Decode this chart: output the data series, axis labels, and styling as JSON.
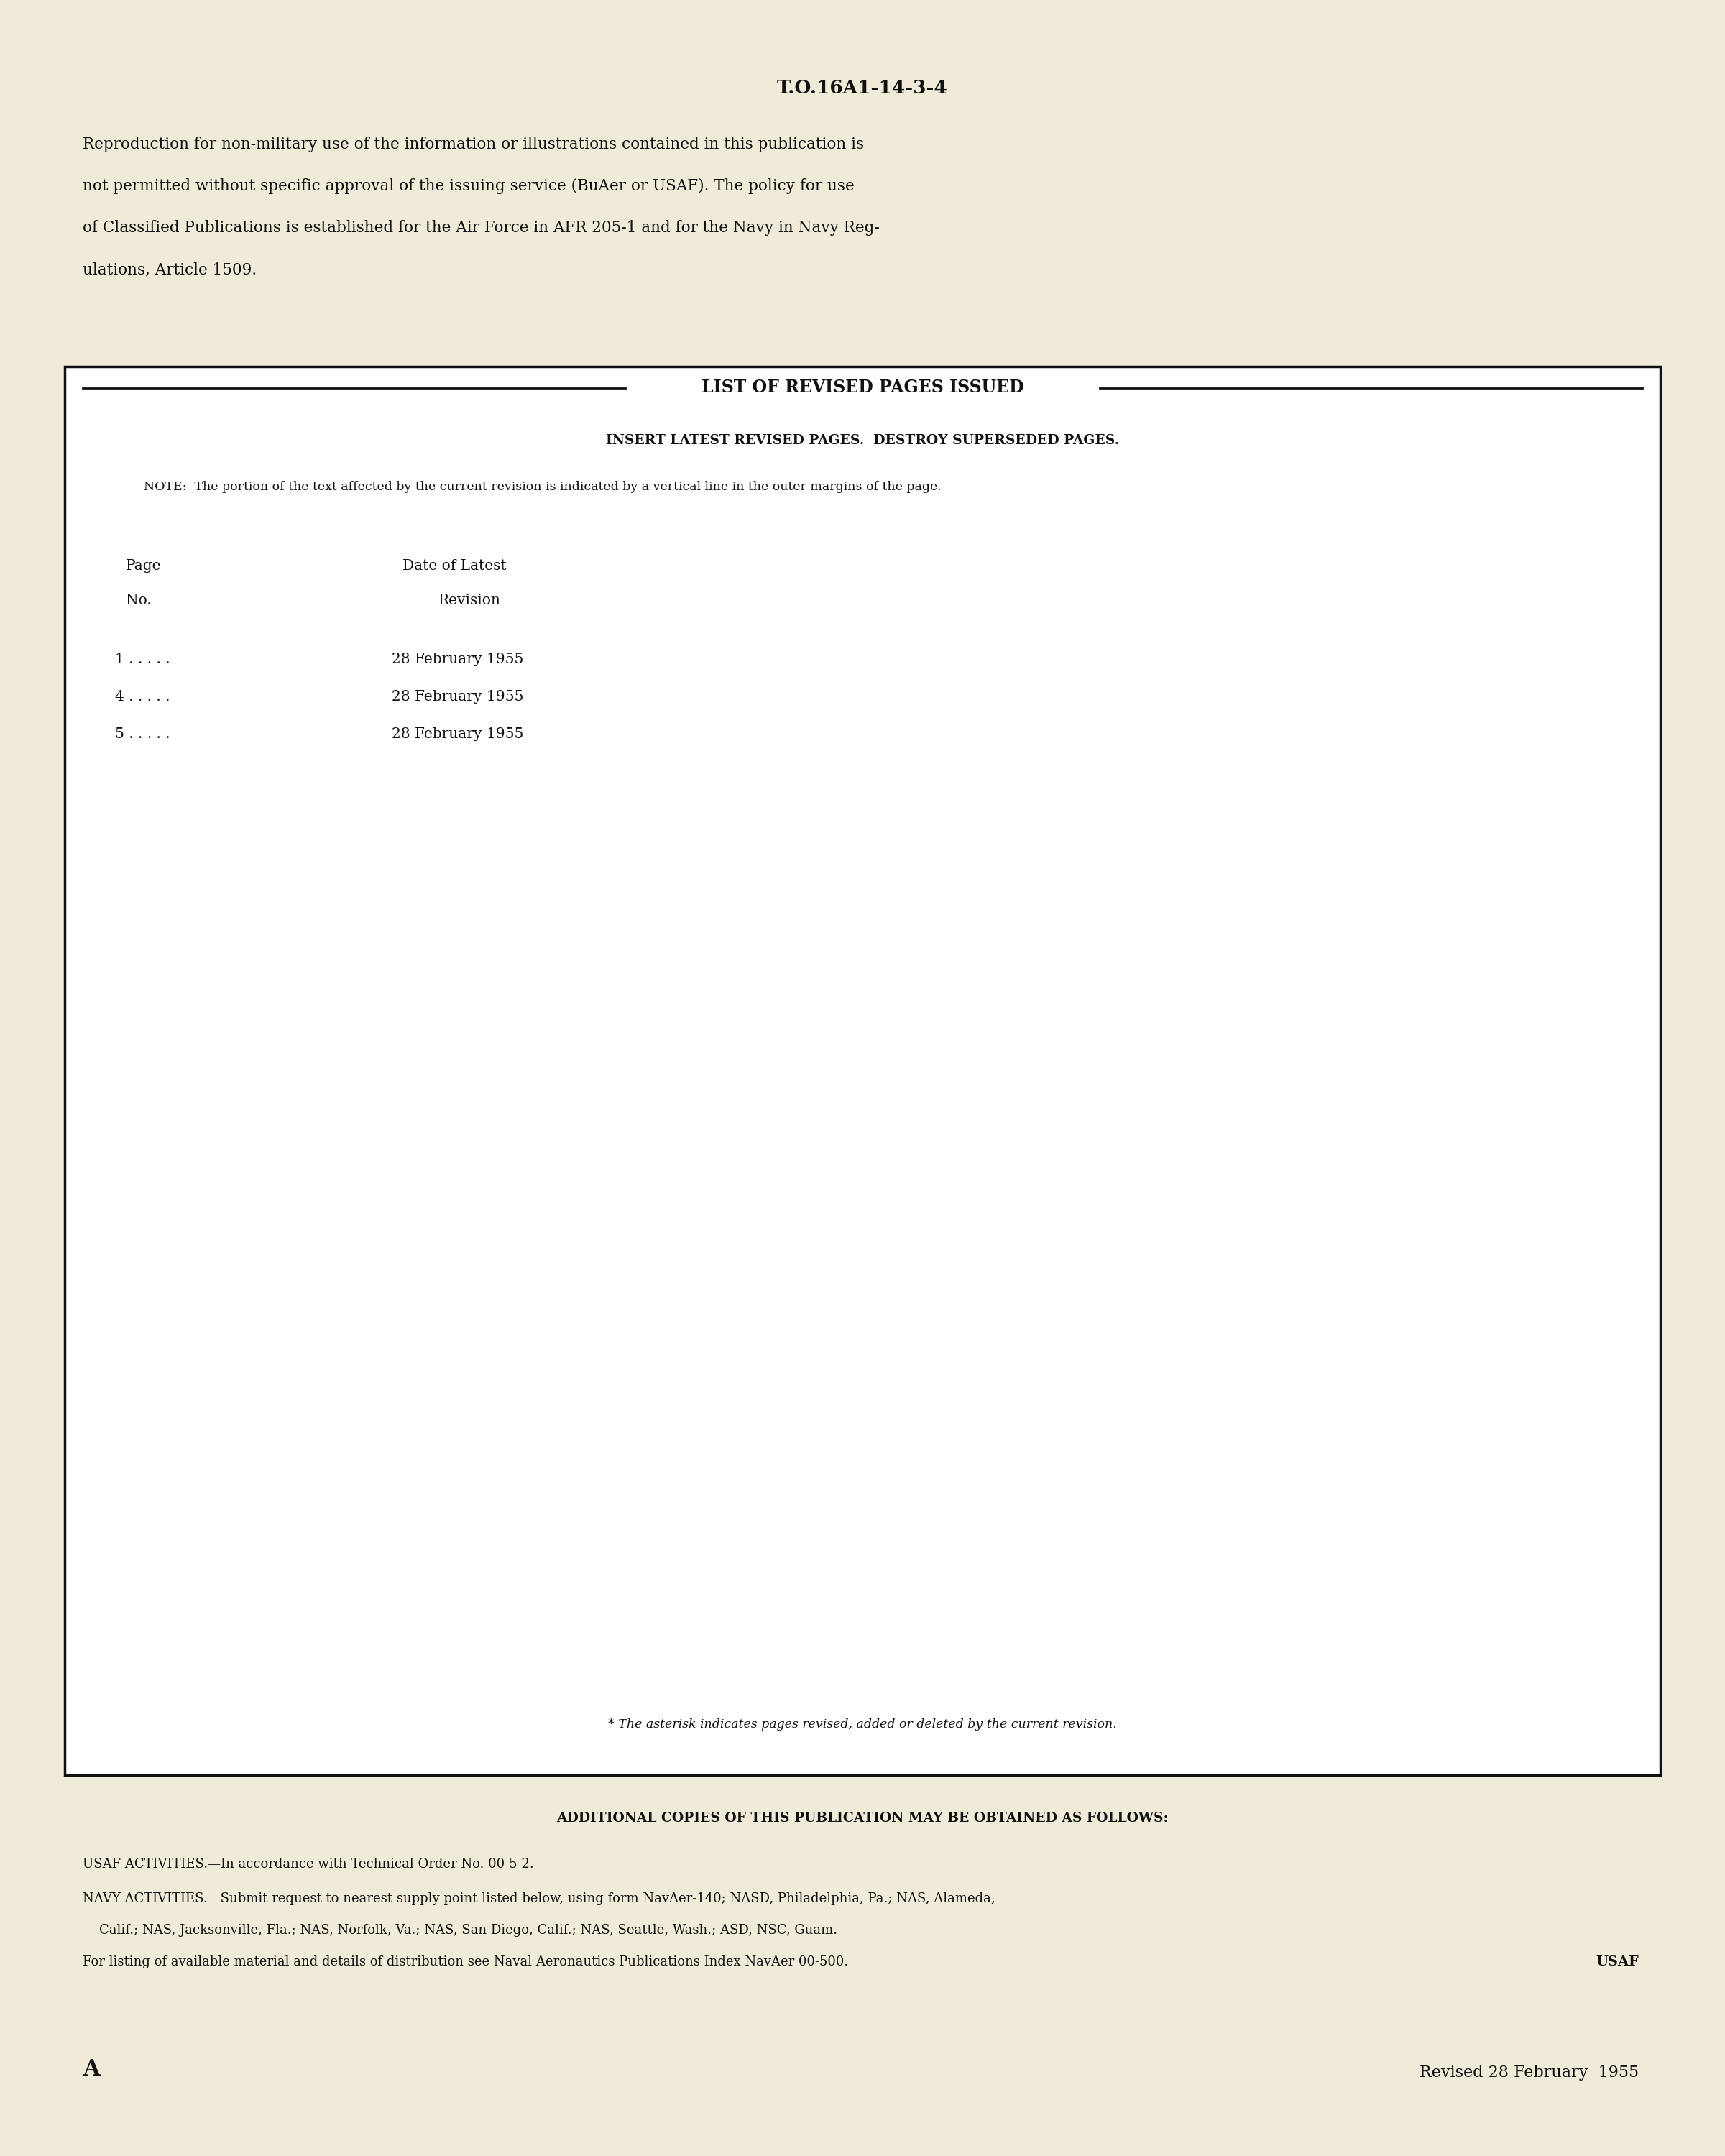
{
  "background_color": "#f0ead8",
  "text_color": "#111111",
  "page_title": "T.O.16A1-14-3-4",
  "repro_line1": "Reproduction for non-military use of the information or illustrations contained in this publication is",
  "repro_line2": "not permitted without specific approval of the issuing service (BuAer or USAF). The policy for use",
  "repro_line3": "of Classified Publications is established for the Air Force in AFR 205-1 and for the Navy in Navy Reg-",
  "repro_line4": "ulations, Article 1509.",
  "box_title": "LIST OF REVISED PAGES ISSUED",
  "box_subtitle": "INSERT LATEST REVISED PAGES.  DESTROY SUPERSEDED PAGES.",
  "box_note": "NOTE:  The portion of the text affected by the current revision is indicated by a vertical line in the outer margins of the page.",
  "col1_hdr1": "Page",
  "col1_hdr2": "No.",
  "col2_hdr1": "Date of Latest",
  "col2_hdr2": "Revision",
  "table_rows": [
    [
      "1 . . . . .",
      "28 February 1955"
    ],
    [
      "4 . . . . .",
      "28 February 1955"
    ],
    [
      "5 . . . . .",
      "28 February 1955"
    ]
  ],
  "asterisk_note": "* The asterisk indicates pages revised, added or deleted by the current revision.",
  "additional_copies_header": "ADDITIONAL COPIES OF THIS PUBLICATION MAY BE OBTAINED AS FOLLOWS:",
  "usaf_line": "USAF ACTIVITIES.—In accordance with Technical Order No. 00-5-2.",
  "navy_line1": "NAVY ACTIVITIES.—Submit request to nearest supply point listed below, using form NavAer-140; NASD, Philadelphia, Pa.; NAS, Alameda,",
  "navy_line2": "    Calif.; NAS, Jacksonville, Fla.; NAS, Norfolk, Va.; NAS, San Diego, Calif.; NAS, Seattle, Wash.; ASD, NSC, Guam.",
  "navy_line3": "For listing of available material and details of distribution see Naval Aeronautics Publications Index NavAer 00-500.",
  "usaf_label": "USAF",
  "page_letter": "A",
  "revised_date": "Revised 28 February  1955"
}
